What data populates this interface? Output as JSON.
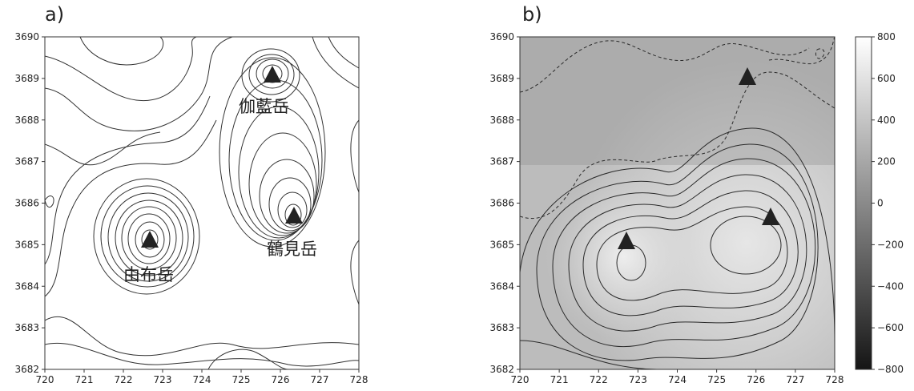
{
  "chart_data": [
    {
      "type": "contour",
      "panel_label": "a)",
      "xlim": [
        720,
        728
      ],
      "ylim": [
        3682,
        3690
      ],
      "x_ticks": [
        720,
        721,
        722,
        723,
        724,
        725,
        726,
        727,
        728
      ],
      "y_ticks": [
        3682,
        3683,
        3684,
        3685,
        3686,
        3687,
        3688,
        3689,
        3690
      ],
      "grid": false,
      "volcanoes": [
        {
          "name": "伽藍岳",
          "x": 725.8,
          "y": 3689.0
        },
        {
          "name": "鶴見岳",
          "x": 726.4,
          "y": 3685.6
        },
        {
          "name": "由布岳",
          "x": 722.7,
          "y": 3685.1
        }
      ]
    },
    {
      "type": "heatmap",
      "panel_label": "b)",
      "xlim": [
        720,
        728
      ],
      "ylim": [
        3682,
        3690
      ],
      "x_ticks": [
        720,
        721,
        722,
        723,
        724,
        725,
        726,
        727,
        728
      ],
      "y_ticks": [
        3682,
        3683,
        3684,
        3685,
        3686,
        3687,
        3688,
        3689,
        3690
      ],
      "colorbar": {
        "range": [
          -800,
          800
        ],
        "ticks": [
          "800",
          "600",
          "400",
          "200",
          "0",
          "−200",
          "−400",
          "−600",
          "−800"
        ],
        "colormap": "grayscale"
      },
      "grid": false,
      "volcanoes": [
        {
          "x": 725.8,
          "y": 3689.0
        },
        {
          "x": 726.4,
          "y": 3685.6
        },
        {
          "x": 722.7,
          "y": 3685.1
        }
      ]
    }
  ]
}
